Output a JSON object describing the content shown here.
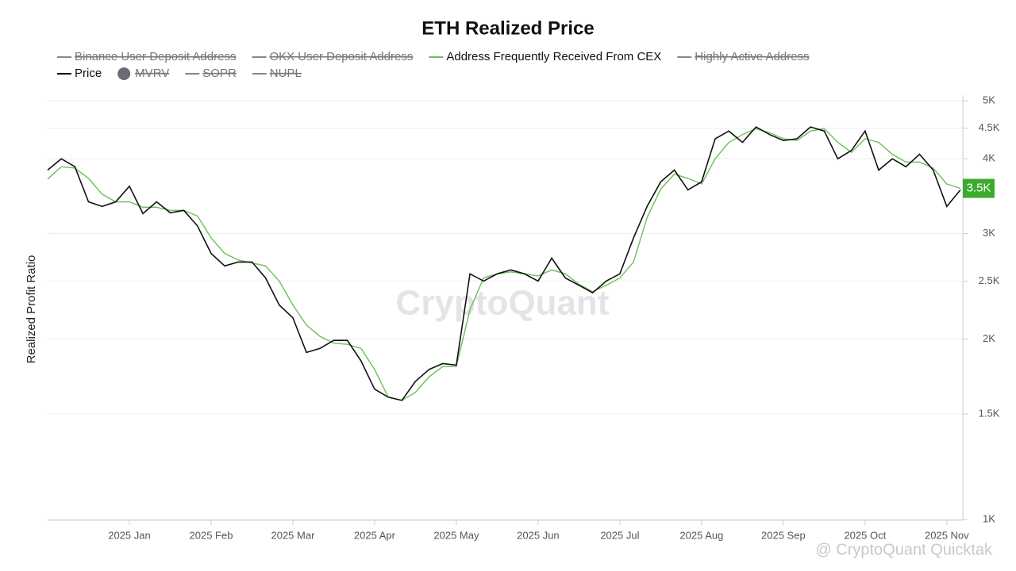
{
  "chart_data": {
    "type": "line",
    "title": "ETH Realized Price",
    "y_label": "Realized Profit Ratio",
    "log_scale": true,
    "grid": true,
    "legend_position": "top",
    "ylim": [
      1000,
      5000
    ],
    "yticks": [
      {
        "value": 1000,
        "label": "1K"
      },
      {
        "value": 1500,
        "label": "1.5K"
      },
      {
        "value": 2000,
        "label": "2K"
      },
      {
        "value": 2500,
        "label": "2.5K"
      },
      {
        "value": 3000,
        "label": "3K"
      },
      {
        "value": 4000,
        "label": "4K"
      },
      {
        "value": 4500,
        "label": "4.5K"
      },
      {
        "value": 5000,
        "label": "5K"
      }
    ],
    "categories": [
      null,
      null,
      null,
      null,
      null,
      null,
      "2025 Jan",
      null,
      null,
      null,
      null,
      null,
      "2025 Feb",
      null,
      null,
      null,
      null,
      null,
      "2025 Mar",
      null,
      null,
      null,
      null,
      null,
      "2025 Apr",
      null,
      null,
      null,
      null,
      null,
      "2025 May",
      null,
      null,
      null,
      null,
      null,
      "2025 Jun",
      null,
      null,
      null,
      null,
      null,
      "2025 Jul",
      null,
      null,
      null,
      null,
      null,
      "2025 Aug",
      null,
      null,
      null,
      null,
      null,
      "2025 Sep",
      null,
      null,
      null,
      null,
      null,
      "2025 Oct",
      null,
      null,
      null,
      null,
      null,
      "2025 Nov",
      null
    ],
    "series": [
      {
        "name": "Binance User Deposit Address",
        "color": "#888888",
        "hidden": true
      },
      {
        "name": "OKX User Deposit Address",
        "color": "#888888",
        "hidden": true
      },
      {
        "name": "Address Frequently Received From CEX",
        "color": "#6cbf5a",
        "values": [
          3700,
          3880,
          3860,
          3710,
          3490,
          3390,
          3390,
          3320,
          3320,
          3280,
          3280,
          3210,
          2950,
          2780,
          2710,
          2680,
          2650,
          2500,
          2280,
          2110,
          2020,
          1970,
          1960,
          1930,
          1780,
          1600,
          1580,
          1630,
          1730,
          1800,
          1800,
          2240,
          2530,
          2570,
          2590,
          2570,
          2550,
          2610,
          2570,
          2470,
          2400,
          2460,
          2530,
          2690,
          3190,
          3560,
          3770,
          3710,
          3630,
          4000,
          4260,
          4390,
          4490,
          4420,
          4320,
          4290,
          4450,
          4490,
          4260,
          4100,
          4320,
          4260,
          4070,
          3950,
          3950,
          3860,
          3630,
          3570
        ]
      },
      {
        "name": "Highly Active Address",
        "color": "#888888",
        "hidden": true
      },
      {
        "name": "Price",
        "color": "#111111",
        "values": [
          3830,
          4000,
          3880,
          3390,
          3330,
          3390,
          3600,
          3240,
          3390,
          3250,
          3280,
          3090,
          2780,
          2650,
          2690,
          2690,
          2530,
          2280,
          2170,
          1900,
          1930,
          1990,
          1990,
          1840,
          1650,
          1600,
          1580,
          1700,
          1780,
          1820,
          1810,
          2570,
          2500,
          2570,
          2610,
          2570,
          2500,
          2730,
          2530,
          2460,
          2390,
          2500,
          2570,
          2950,
          3330,
          3660,
          3830,
          3550,
          3660,
          4320,
          4450,
          4260,
          4520,
          4390,
          4290,
          4320,
          4520,
          4450,
          4000,
          4130,
          4450,
          3830,
          4000,
          3880,
          4070,
          3830,
          3330,
          3550
        ]
      },
      {
        "name": "MVRV",
        "color": "#6b6b78",
        "hidden": true,
        "marker": "circle"
      },
      {
        "name": "SOPR",
        "color": "#888888",
        "hidden": true
      },
      {
        "name": "NUPL",
        "color": "#888888",
        "hidden": true
      }
    ],
    "badge": {
      "label": "3.5K",
      "series": 2,
      "color": "#3daa2e"
    },
    "watermark": "CryptoQuant",
    "credit": "@ CryptoQuant Quicktak"
  }
}
